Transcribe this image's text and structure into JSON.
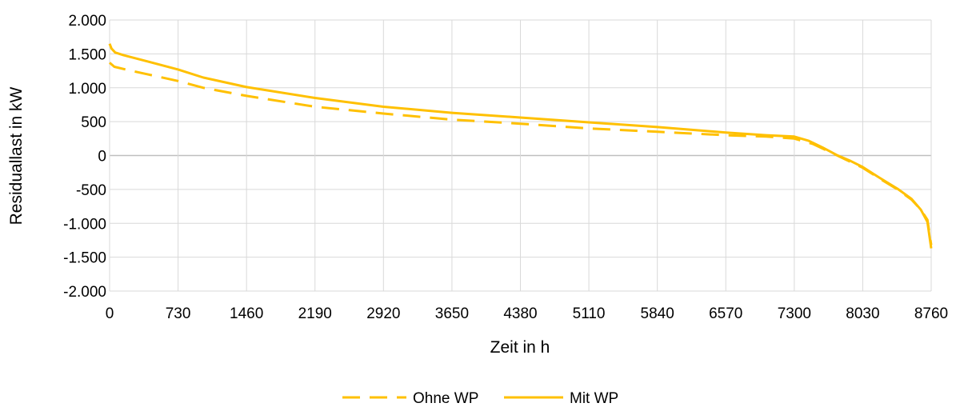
{
  "chart_data": {
    "type": "line",
    "title": "",
    "xlabel": "Zeit in h",
    "ylabel": "Residuallast in kW",
    "xlim": [
      0,
      8760
    ],
    "ylim": [
      -2000,
      2000
    ],
    "x_ticks": [
      0,
      730,
      1460,
      2190,
      2920,
      3650,
      4380,
      5110,
      5840,
      6570,
      7300,
      8030,
      8760
    ],
    "x_tick_labels": [
      "0",
      "730",
      "1460",
      "2190",
      "2920",
      "3650",
      "4380",
      "5110",
      "5840",
      "6570",
      "7300",
      "8030",
      "8760"
    ],
    "y_ticks": [
      2000,
      1500,
      1000,
      500,
      0,
      -500,
      -1000,
      -1500,
      -2000
    ],
    "y_tick_labels": [
      "2.000",
      "1.500",
      "1.000",
      "500",
      "0",
      "-500",
      "-1.000",
      "-1.500",
      "-2.000"
    ],
    "grid": true,
    "legend_position": "bottom",
    "series": [
      {
        "name": "Ohne WP",
        "style": "dashed",
        "color": "#FFC000",
        "x": [
          0,
          50,
          200,
          400,
          730,
          1000,
          1460,
          2190,
          2920,
          3650,
          4380,
          5110,
          5840,
          6570,
          7000,
          7300,
          7500,
          7700,
          7850,
          8030,
          8200,
          8400,
          8550,
          8650,
          8720,
          8760
        ],
        "y": [
          1370,
          1310,
          1260,
          1200,
          1100,
          1000,
          880,
          720,
          620,
          530,
          470,
          400,
          350,
          300,
          280,
          250,
          170,
          40,
          -60,
          -180,
          -330,
          -500,
          -650,
          -800,
          -950,
          -1320
        ]
      },
      {
        "name": "Mit WP",
        "style": "solid",
        "color": "#FFC000",
        "x": [
          0,
          20,
          60,
          150,
          400,
          730,
          1000,
          1460,
          2190,
          2920,
          3650,
          4380,
          5110,
          5840,
          6570,
          7000,
          7300,
          7450,
          7600,
          7750,
          7900,
          8030,
          8200,
          8400,
          8550,
          8650,
          8720,
          8760
        ],
        "y": [
          1650,
          1580,
          1520,
          1480,
          1390,
          1270,
          1150,
          1010,
          850,
          720,
          630,
          560,
          490,
          420,
          340,
          300,
          280,
          220,
          120,
          10,
          -80,
          -170,
          -320,
          -490,
          -640,
          -800,
          -980,
          -1370
        ]
      }
    ]
  }
}
